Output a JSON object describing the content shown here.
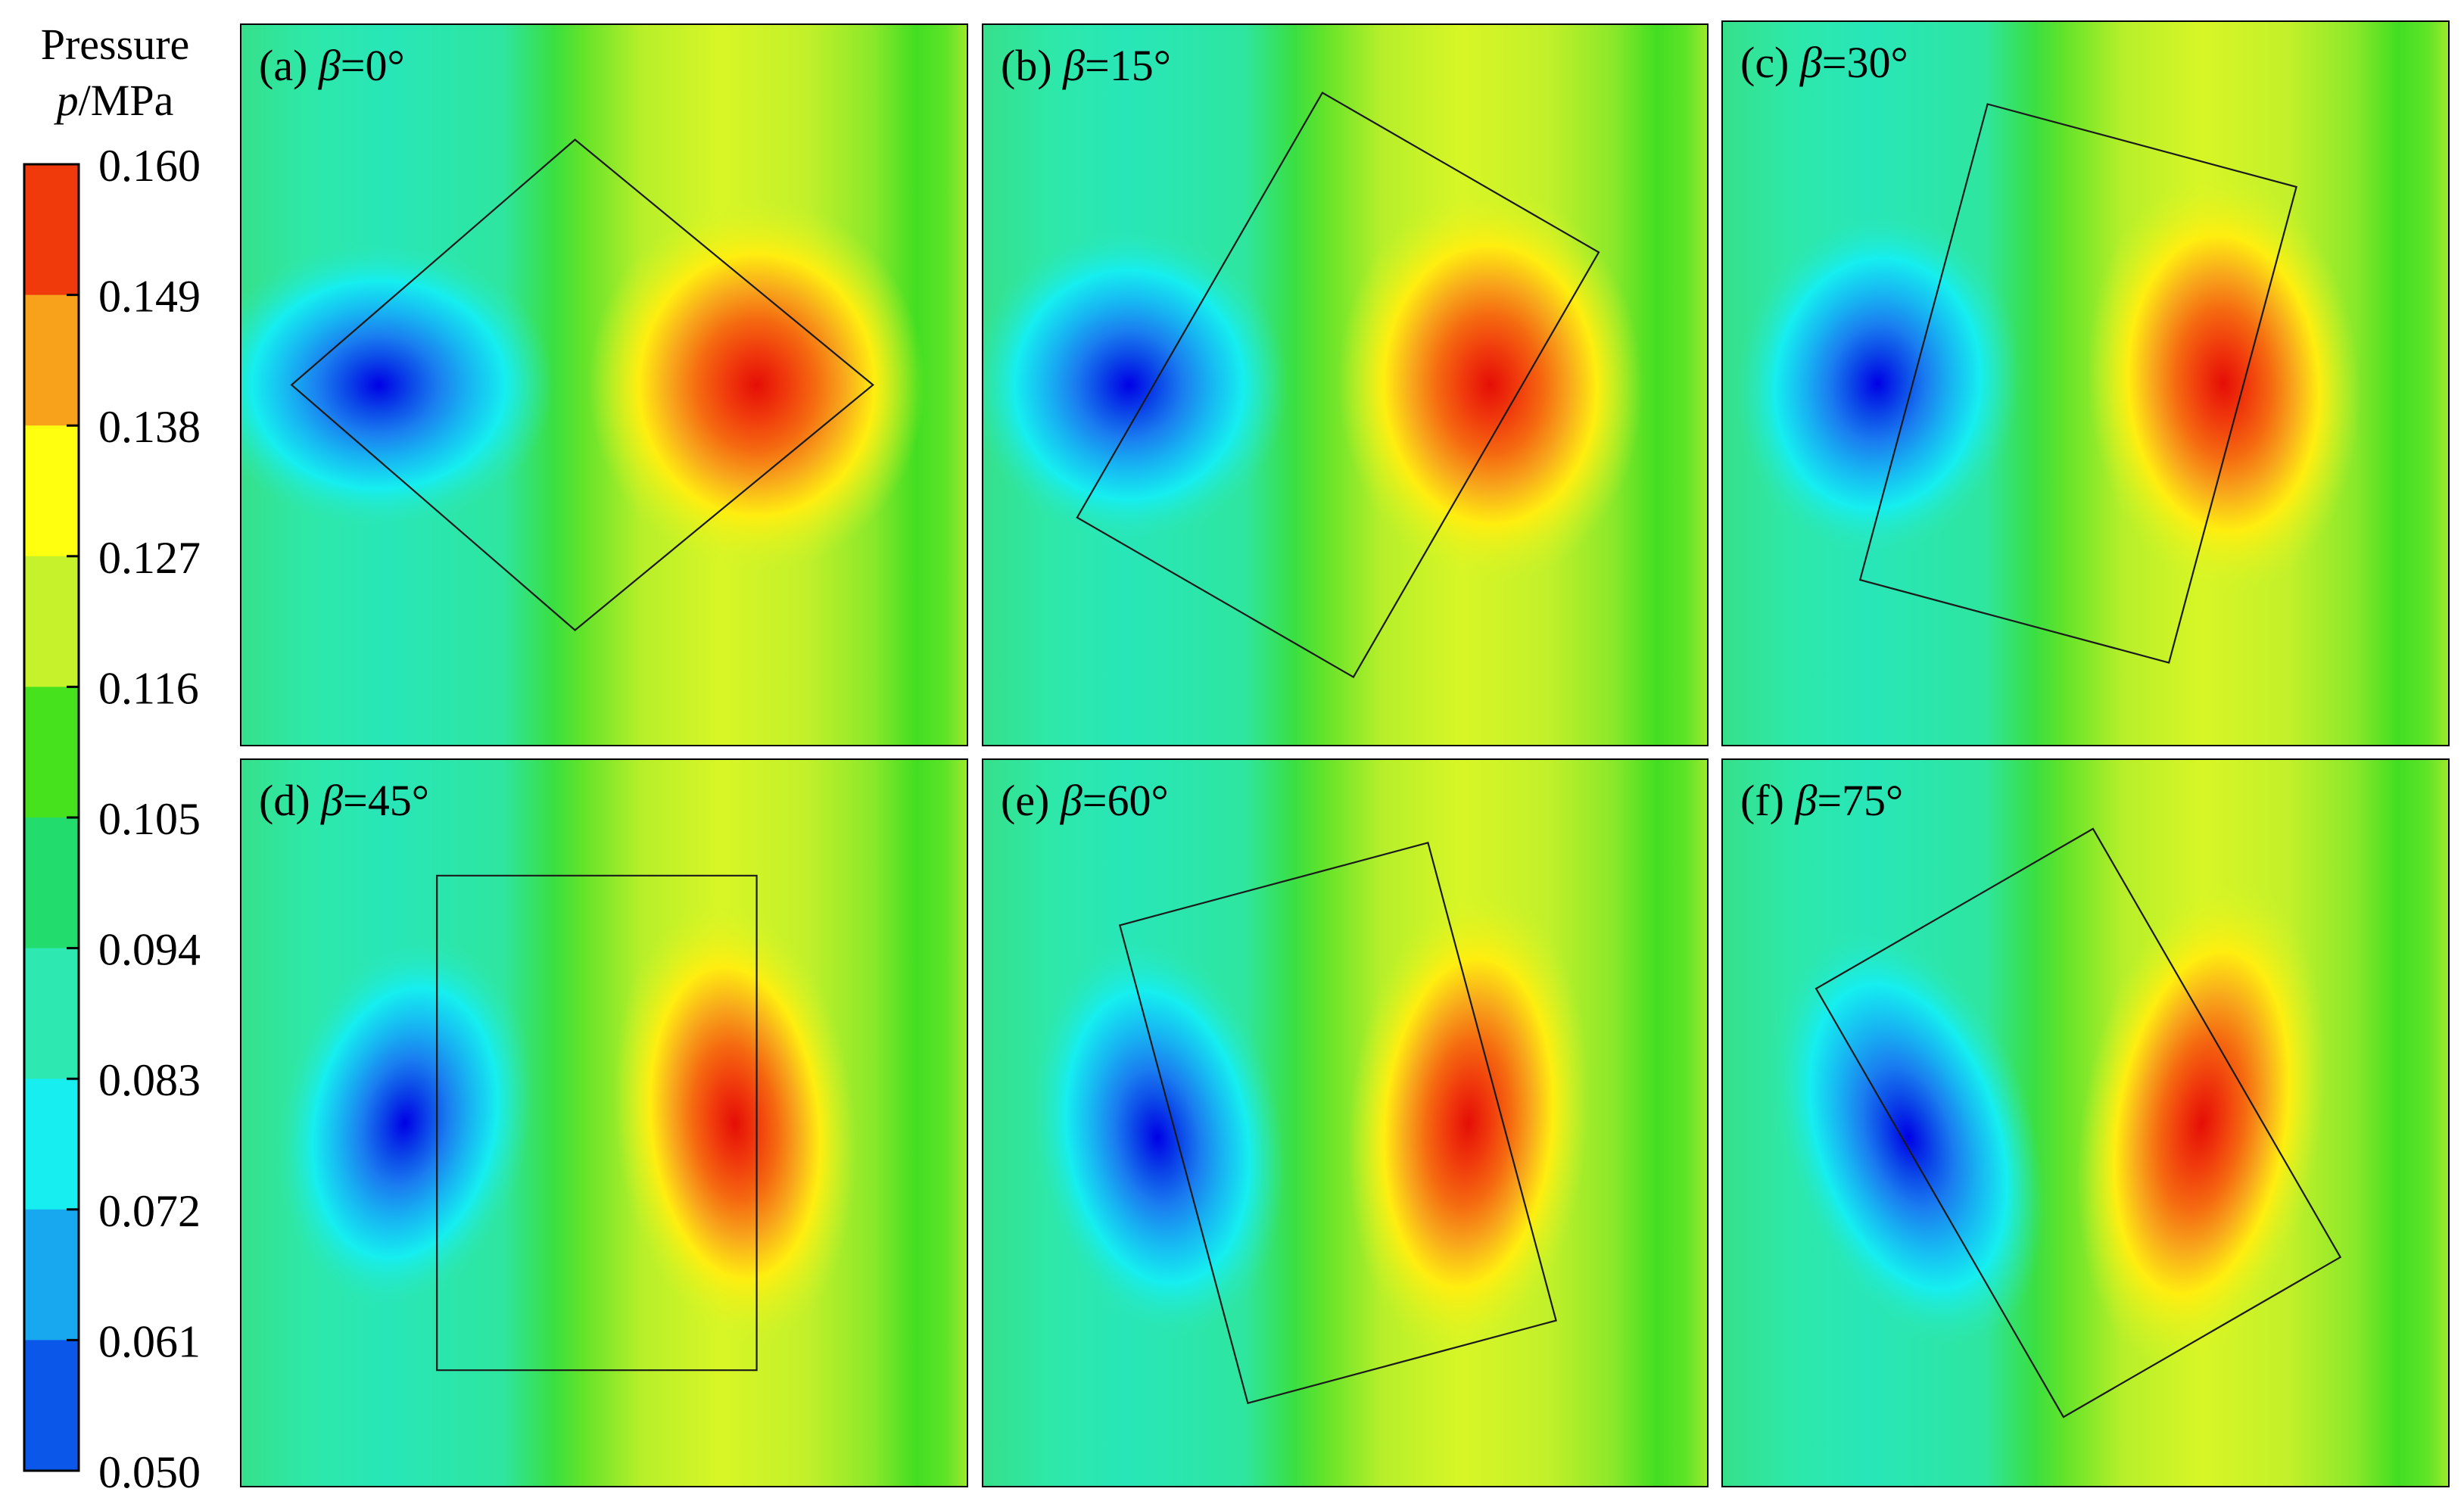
{
  "colorbar": {
    "title_line1": "Pressure",
    "title_line2_var": "p",
    "title_line2_unit": "/MPa",
    "levels": [
      "0.160",
      "0.149",
      "0.138",
      "0.127",
      "0.116",
      "0.105",
      "0.094",
      "0.083",
      "0.072",
      "0.061",
      "0.050"
    ],
    "bands_top_to_bottom": [
      "#f03a0c",
      "#f7a21a",
      "#ffff10",
      "#c5f22a",
      "#47e21e",
      "#22dd6e",
      "#2ee8b2",
      "#16eef0",
      "#17a8f0",
      "#0b57e9"
    ]
  },
  "panels": [
    {
      "tag": "(a)",
      "var": "β",
      "value": "=0°",
      "beta": 0
    },
    {
      "tag": "(b)",
      "var": "β",
      "value": "=15°",
      "beta": 15
    },
    {
      "tag": "(c)",
      "var": "β",
      "value": "=30°",
      "beta": 30
    },
    {
      "tag": "(d)",
      "var": "β",
      "value": "=45°",
      "beta": 45
    },
    {
      "tag": "(e)",
      "var": "β",
      "value": "=60°",
      "beta": 60
    },
    {
      "tag": "(f)",
      "var": "β",
      "value": "=75°",
      "beta": 75
    }
  ]
}
